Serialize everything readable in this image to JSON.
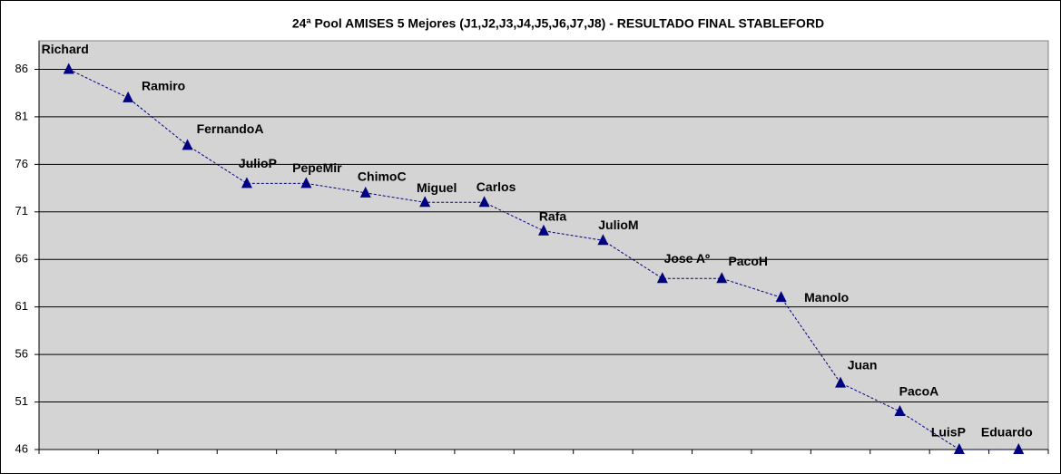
{
  "chart_data": {
    "type": "line",
    "title": "24ª Pool AMISES 5 Mejores (J1,J2,J3,J4,J5,J6,J7,J8)  - RESULTADO FINAL STABLEFORD",
    "categories": [
      "Richard",
      "Ramiro",
      "FernandoA",
      "JulioP",
      "PepeMir",
      "ChimoC",
      "Miguel",
      "Carlos",
      "Rafa",
      "JulioM",
      "Jose Aº",
      "PacoH",
      "Manolo",
      "Juan",
      "PacoA",
      "LuisP",
      "Eduardo"
    ],
    "values": [
      86,
      83,
      78,
      74,
      74,
      73,
      72,
      72,
      69,
      68,
      64,
      64,
      62,
      53,
      50,
      46,
      46
    ],
    "color": "#000080",
    "ylim": [
      46,
      89
    ],
    "yticks": [
      46,
      51,
      56,
      61,
      66,
      71,
      76,
      81,
      86
    ],
    "grid": true
  }
}
